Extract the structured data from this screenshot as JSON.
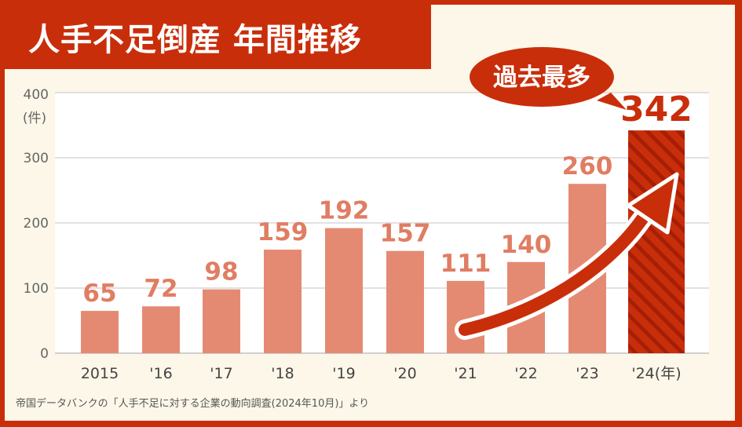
{
  "title": "人手不足倒産 年間推移",
  "chart_data": {
    "type": "bar",
    "title": "人手不足倒産 年間推移",
    "ylabel": "(件)",
    "xlabel": "",
    "categories": [
      "2015",
      "'16",
      "'17",
      "'18",
      "'19",
      "'20",
      "'21",
      "'22",
      "'23",
      "'24(年)"
    ],
    "values": [
      65,
      72,
      98,
      159,
      192,
      157,
      111,
      140,
      260,
      342
    ],
    "ylim": [
      0,
      400
    ],
    "yticks": [
      0,
      100,
      200,
      300,
      400
    ],
    "grid": true,
    "highlight": {
      "category": "'24(年)",
      "callout": "過去最多",
      "style": "hatched"
    },
    "colors": {
      "bar": "#e58a72",
      "label": "#e07d63",
      "highlight": "#c92e0a",
      "highlight_stripe": "#a51f06",
      "frame": "#c92e0a",
      "background": "#fcf7e8"
    }
  },
  "source": "帝国データバンクの「人手不足に対する企業の動向調査(2024年10月)」より"
}
